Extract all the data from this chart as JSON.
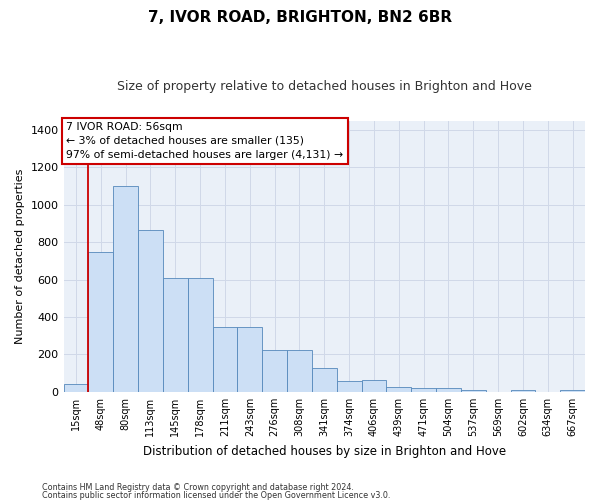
{
  "title": "7, IVOR ROAD, BRIGHTON, BN2 6BR",
  "subtitle": "Size of property relative to detached houses in Brighton and Hove",
  "xlabel": "Distribution of detached houses by size in Brighton and Hove",
  "ylabel": "Number of detached properties",
  "footnote1": "Contains HM Land Registry data © Crown copyright and database right 2024.",
  "footnote2": "Contains public sector information licensed under the Open Government Licence v3.0.",
  "bar_labels": [
    "15sqm",
    "48sqm",
    "80sqm",
    "113sqm",
    "145sqm",
    "178sqm",
    "211sqm",
    "243sqm",
    "276sqm",
    "308sqm",
    "341sqm",
    "374sqm",
    "406sqm",
    "439sqm",
    "471sqm",
    "504sqm",
    "537sqm",
    "569sqm",
    "602sqm",
    "634sqm",
    "667sqm"
  ],
  "bar_values": [
    45,
    750,
    1100,
    865,
    610,
    610,
    345,
    345,
    225,
    225,
    130,
    60,
    65,
    28,
    22,
    20,
    12,
    0,
    8,
    0,
    8
  ],
  "bar_color": "#ccdff5",
  "bar_edge_color": "#5588bb",
  "grid_color": "#d0d8e8",
  "background_color": "#eaf0f8",
  "annotation_text_line1": "7 IVOR ROAD: 56sqm",
  "annotation_text_line2": "← 3% of detached houses are smaller (135)",
  "annotation_text_line3": "97% of semi-detached houses are larger (4,131) →",
  "annotation_box_facecolor": "#ffffff",
  "annotation_box_edgecolor": "#cc0000",
  "vline_x_index": 1,
  "vline_color": "#cc0000",
  "ylim": [
    0,
    1450
  ],
  "yticks": [
    0,
    200,
    400,
    600,
    800,
    1000,
    1200,
    1400
  ],
  "title_fontsize": 11,
  "subtitle_fontsize": 9
}
